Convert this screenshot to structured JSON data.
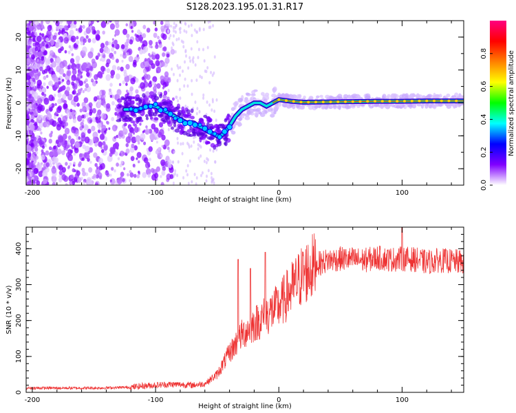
{
  "title": "S128.2023.195.01.31.R17",
  "chart_data": [
    {
      "type": "heatmap",
      "title": "S128.2023.195.01.31.R17",
      "xlabel": "Height of straight line (km)",
      "ylabel": "Frequency (Hz)",
      "xlim": [
        -205,
        150
      ],
      "ylim": [
        -25,
        25
      ],
      "x_ticks": [
        "-200",
        "-100",
        "0",
        "100"
      ],
      "y_ticks": [
        "-20",
        "-10",
        "0",
        "10",
        "20"
      ],
      "colorbar": {
        "label": "Normalized spectral amplitude",
        "range": [
          0,
          1
        ],
        "ticks": [
          "0.0",
          "0.2",
          "0.4",
          "0.6",
          "0.8"
        ],
        "colors": [
          "#ffffff",
          "#8000ff",
          "#0000ff",
          "#00ffff",
          "#00ff00",
          "#ffff00",
          "#ff8000",
          "#ff0000",
          "#ff0080"
        ]
      },
      "ridge": {
        "x": [
          -125,
          -115,
          -105,
          -100,
          -95,
          -90,
          -85,
          -80,
          -75,
          -70,
          -65,
          -60,
          -55,
          -50,
          -47,
          -44,
          -40,
          -35,
          -30,
          -25,
          -20,
          -15,
          -10,
          -5,
          0,
          10,
          20,
          40,
          60,
          80,
          100,
          120,
          150
        ],
        "y": [
          -2,
          -2,
          -1,
          -1,
          -2,
          -3,
          -4,
          -5,
          -6,
          -6,
          -7,
          -8,
          -9,
          -10,
          -10,
          -9,
          -7,
          -4,
          -2,
          -1,
          0,
          0,
          -1,
          0,
          1,
          0.5,
          0.2,
          0.3,
          0.4,
          0.5,
          0.5,
          0.6,
          0.6
        ]
      }
    },
    {
      "type": "line",
      "xlabel": "Height of straight line (km)",
      "ylabel": "SNR (10 * v/v)",
      "xlim": [
        -205,
        150
      ],
      "ylim": [
        0,
        460
      ],
      "x_ticks": [
        "-200",
        "-100",
        "0",
        "100"
      ],
      "y_ticks": [
        "0",
        "100",
        "200",
        "300",
        "400"
      ],
      "color": "#ee3333",
      "envelope": {
        "x": [
          -205,
          -180,
          -150,
          -120,
          -110,
          -100,
          -90,
          -80,
          -70,
          -60,
          -50,
          -40,
          -30,
          -20,
          -10,
          0,
          10,
          20,
          30,
          40,
          50,
          60,
          70,
          80,
          90,
          100,
          110,
          120,
          130,
          140,
          150
        ],
        "y": [
          12,
          12,
          12,
          14,
          18,
          20,
          22,
          22,
          20,
          24,
          50,
          110,
          160,
          190,
          215,
          240,
          285,
          330,
          355,
          368,
          372,
          370,
          368,
          375,
          370,
          372,
          370,
          362,
          368,
          365,
          362
        ]
      },
      "spikes": [
        {
          "x": -33,
          "y": 370
        },
        {
          "x": -23,
          "y": 345
        },
        {
          "x": -11,
          "y": 390
        },
        {
          "x": 100,
          "y": 460
        }
      ]
    }
  ]
}
